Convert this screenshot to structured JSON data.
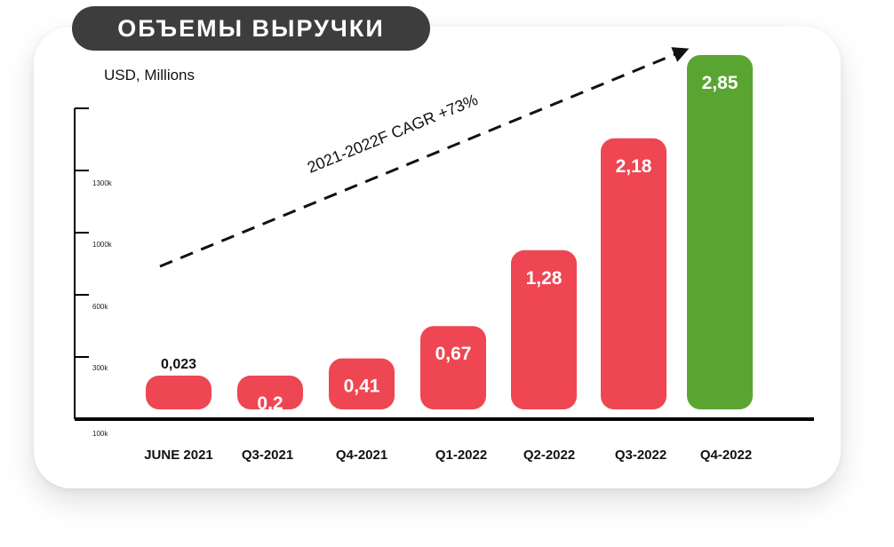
{
  "title": "ОБЪЕМЫ ВЫРУЧКИ",
  "units_label": "USD, Millions",
  "chart_data": {
    "type": "bar",
    "categories": [
      "JUNE 2021",
      "Q3-2021",
      "Q4-2021",
      "Q1-2022",
      "Q2-2022",
      "Q3-2022",
      "Q4-2022"
    ],
    "values": [
      "0,023",
      "0,2",
      "0,41",
      "0,67",
      "1,28",
      "2,18",
      "2,85"
    ],
    "value_numbers": [
      0.023,
      0.2,
      0.41,
      0.67,
      1.28,
      2.18,
      2.85
    ],
    "value_label_inside": [
      false,
      true,
      true,
      true,
      true,
      true,
      true
    ],
    "bar_colors": [
      "#ee4652",
      "#ee4652",
      "#ee4652",
      "#ee4652",
      "#ee4652",
      "#ee4652",
      "#5aa531"
    ],
    "y_ticks": [
      "1300k",
      "1000k",
      "600k",
      "300k",
      "100k"
    ],
    "trend_label": "2021-2022F CAGR +73%",
    "grid": false,
    "legend": "none"
  }
}
